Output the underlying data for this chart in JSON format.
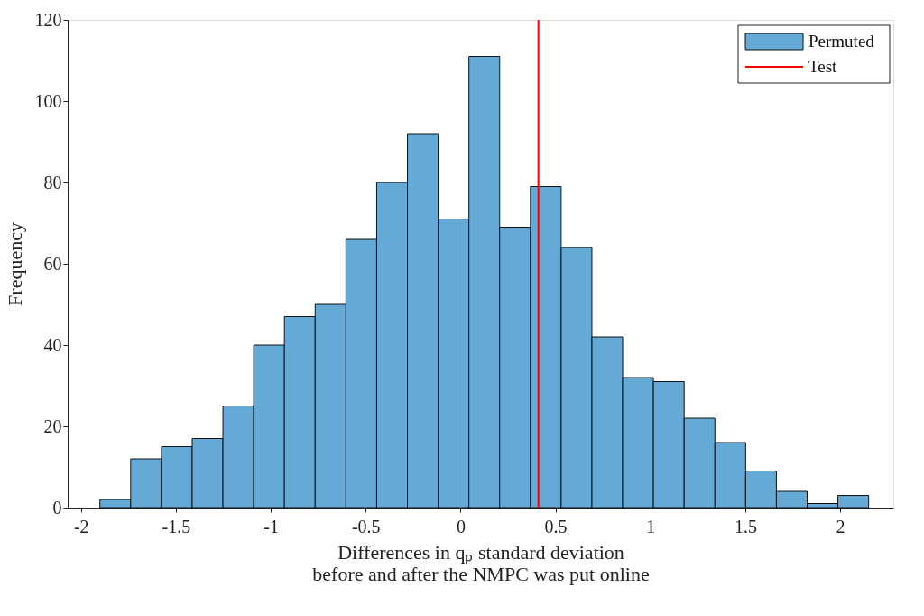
{
  "chart_data": {
    "type": "histogram",
    "xlabel": "Differences in qₚ standard deviation\nbefore and after the NMPC was put online",
    "ylabel": "Frequency",
    "bins": [
      -1.9,
      -1.738,
      -1.576,
      -1.414,
      -1.252,
      -1.09,
      -0.928,
      -0.766,
      -0.604,
      -0.442,
      -0.28,
      -0.118,
      0.044,
      0.206,
      0.368,
      0.53,
      0.692,
      0.854,
      1.016,
      1.178,
      1.34,
      1.502,
      1.664,
      1.826,
      1.988,
      2.15
    ],
    "series": [
      {
        "name": "Permuted",
        "color": "#65a9d7",
        "values": [
          2,
          12,
          15,
          17,
          25,
          40,
          47,
          50,
          66,
          80,
          92,
          71,
          111,
          69,
          79,
          64,
          42,
          32,
          31,
          22,
          16,
          9,
          4,
          1,
          3
        ]
      },
      {
        "name": "Test",
        "type": "line",
        "color": "#ff0000",
        "x": [
          0.41,
          0.41
        ],
        "values": [
          0,
          120
        ]
      }
    ],
    "xlim": [
      -2.07,
      2.28
    ],
    "ylim": [
      0,
      120
    ],
    "xticks": [
      -2,
      -1.5,
      -1,
      -0.5,
      0,
      0.5,
      1,
      1.5,
      2
    ],
    "yticks": [
      0,
      20,
      40,
      60,
      80,
      100,
      120
    ],
    "legend": "top right",
    "grid": false
  }
}
